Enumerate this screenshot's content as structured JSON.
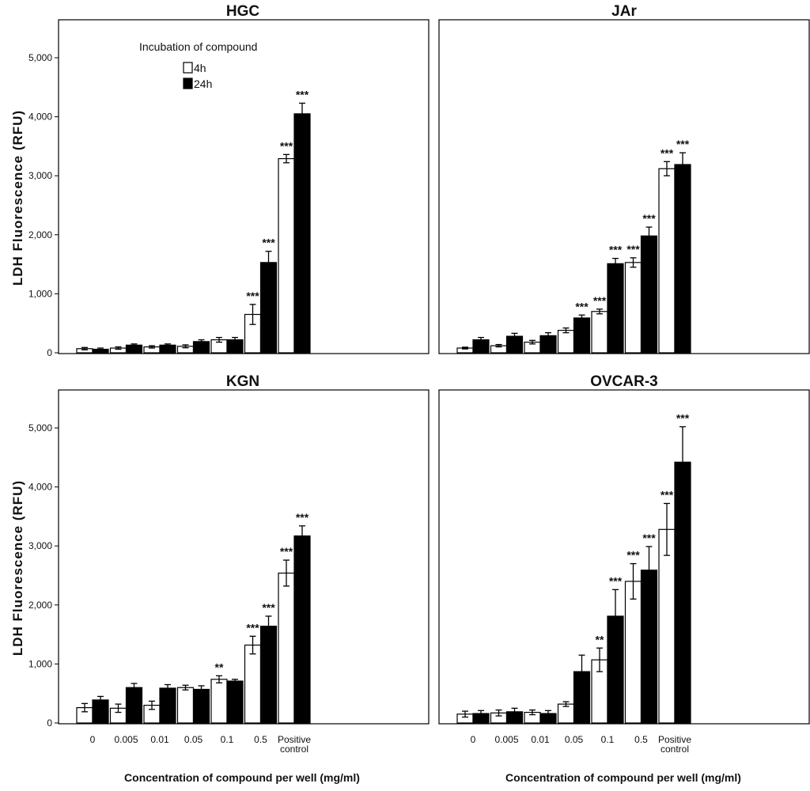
{
  "y_axis_label": "LDH Fluorescence (RFU)",
  "x_axis_label": "Concentration of compound per well (mg/ml)",
  "legend": {
    "title": "Incubation of compound",
    "entries": [
      {
        "label": "4h",
        "color": "#ffffff"
      },
      {
        "label": "24h",
        "color": "#000000"
      }
    ]
  },
  "chart_data": [
    {
      "type": "bar",
      "title": "HGC",
      "categories": [
        "0",
        "0.005",
        "0.01",
        "0.05",
        "0.1",
        "0.5",
        "Positive control"
      ],
      "ylim": [
        0,
        5500
      ],
      "yticks": [
        0,
        1000,
        2000,
        3000,
        4000,
        5000
      ],
      "ytick_labels": [
        "0",
        "1,000",
        "2,000",
        "3,000",
        "4,000",
        "5,000"
      ],
      "series": [
        {
          "name": "4h",
          "values": [
            70,
            80,
            100,
            110,
            220,
            650,
            3290
          ],
          "errors": [
            20,
            20,
            20,
            25,
            40,
            170,
            70
          ],
          "significance": [
            "",
            "",
            "",
            "",
            "",
            "***",
            "***"
          ]
        },
        {
          "name": "24h",
          "values": [
            60,
            130,
            130,
            190,
            220,
            1530,
            4050
          ],
          "errors": [
            20,
            20,
            20,
            30,
            40,
            190,
            180
          ],
          "significance": [
            "",
            "",
            "",
            "",
            "",
            "***",
            "***"
          ]
        }
      ]
    },
    {
      "type": "bar",
      "title": "JAr",
      "categories": [
        "0",
        "0.005",
        "0.01",
        "0.05",
        "0.1",
        "0.5",
        "Positive control"
      ],
      "ylim": [
        0,
        5500
      ],
      "series": [
        {
          "name": "4h",
          "values": [
            80,
            120,
            180,
            380,
            700,
            1530,
            3120
          ],
          "errors": [
            15,
            20,
            30,
            40,
            40,
            80,
            120
          ],
          "significance": [
            "",
            "",
            "",
            "",
            "***",
            "***",
            "***"
          ]
        },
        {
          "name": "24h",
          "values": [
            220,
            280,
            290,
            590,
            1510,
            1980,
            3190
          ],
          "errors": [
            40,
            50,
            50,
            50,
            90,
            150,
            200
          ],
          "significance": [
            "",
            "",
            "",
            "***",
            "***",
            "***",
            "***"
          ]
        }
      ]
    },
    {
      "type": "bar",
      "title": "KGN",
      "categories": [
        "0",
        "0.005",
        "0.01",
        "0.05",
        "0.1",
        "0.5",
        "Positive control"
      ],
      "ylim": [
        0,
        5500
      ],
      "yticks": [
        0,
        1000,
        2000,
        3000,
        4000,
        5000
      ],
      "ytick_labels": [
        "0",
        "1,000",
        "2,000",
        "3,000",
        "4,000",
        "5,000"
      ],
      "series": [
        {
          "name": "4h",
          "values": [
            260,
            250,
            300,
            600,
            740,
            1320,
            2540
          ],
          "errors": [
            70,
            70,
            70,
            40,
            60,
            150,
            220
          ],
          "significance": [
            "",
            "",
            "",
            "",
            "**",
            "***",
            "***"
          ]
        },
        {
          "name": "24h",
          "values": [
            390,
            600,
            590,
            570,
            710,
            1640,
            3170
          ],
          "errors": [
            60,
            70,
            60,
            60,
            30,
            170,
            170
          ],
          "significance": [
            "",
            "",
            "",
            "",
            "",
            "***",
            "***"
          ]
        }
      ]
    },
    {
      "type": "bar",
      "title": "OVCAR-3",
      "categories": [
        "0",
        "0.005",
        "0.01",
        "0.05",
        "0.1",
        "0.5",
        "Positive control"
      ],
      "ylim": [
        0,
        5500
      ],
      "series": [
        {
          "name": "4h",
          "values": [
            150,
            170,
            180,
            320,
            1070,
            2400,
            3280
          ],
          "errors": [
            50,
            50,
            40,
            40,
            200,
            300,
            440
          ],
          "significance": [
            "",
            "",
            "",
            "",
            "**",
            "***",
            "***"
          ]
        },
        {
          "name": "24h",
          "values": [
            160,
            190,
            160,
            870,
            1810,
            2590,
            4420
          ],
          "errors": [
            50,
            60,
            50,
            280,
            450,
            400,
            600
          ],
          "significance": [
            "",
            "",
            "",
            "",
            "***",
            "***",
            "***"
          ]
        }
      ]
    }
  ]
}
